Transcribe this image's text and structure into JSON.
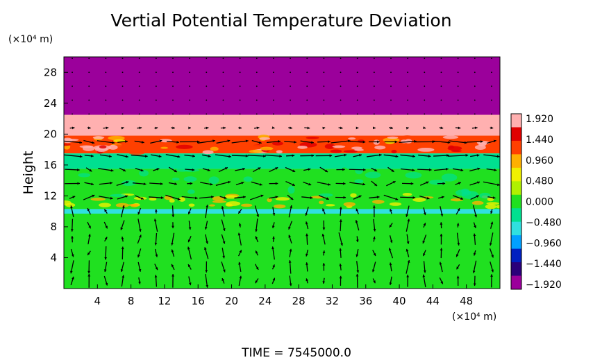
{
  "chart_data": {
    "type": "heatmap",
    "title": "Vertial Potential Temperature Deviation",
    "ylabel": "Height",
    "y_unit": "(×10⁴ m)",
    "x_unit": "(×10⁴ m)",
    "footer": "TIME  =  7545000.0",
    "xlim": [
      0,
      52
    ],
    "ylim": [
      0,
      30
    ],
    "x_ticks": [
      "4",
      "8",
      "12",
      "16",
      "20",
      "24",
      "28",
      "32",
      "36",
      "40",
      "44",
      "48"
    ],
    "y_ticks": [
      "4",
      "8",
      "12",
      "16",
      "20",
      "24",
      "28"
    ],
    "x_tick_values": [
      4,
      8,
      12,
      16,
      20,
      24,
      28,
      32,
      36,
      40,
      44,
      48
    ],
    "y_tick_values": [
      4,
      8,
      12,
      16,
      20,
      24,
      28
    ],
    "colorbar": {
      "labels": [
        "1.920",
        "1.440",
        "0.960",
        "0.480",
        "0.000",
        "−0.480",
        "−0.960",
        "−1.440",
        "−1.920"
      ],
      "min": -1.92,
      "max": 1.92,
      "colors": [
        "#9b009b",
        "#2a007a",
        "#0020c0",
        "#00a0ff",
        "#30e0e0",
        "#00e090",
        "#20e020",
        "#b0f000",
        "#f0f000",
        "#ffb000",
        "#ff4000",
        "#e00000",
        "#ffb0b0"
      ]
    },
    "regions": [
      {
        "label": "upper layer",
        "y_from": 22.5,
        "y_to": 30,
        "value": -1.92
      },
      {
        "label": "pink band",
        "y_from": 19.8,
        "y_to": 22.5,
        "value": 1.92
      },
      {
        "label": "warm band",
        "y_from": 17.5,
        "y_to": 19.8,
        "value": 1.2
      },
      {
        "label": "cyan band",
        "y_from": 15.5,
        "y_to": 17.5,
        "value": -0.2
      },
      {
        "label": "mid layer",
        "y_from": 10,
        "y_to": 15.5,
        "value": 0.1
      },
      {
        "label": "thin blue line",
        "y_from": 9.7,
        "y_to": 10.3,
        "value": -0.6
      },
      {
        "label": "lower layer",
        "y_from": 0,
        "y_to": 9.7,
        "value": 0.05
      }
    ],
    "grid": false,
    "legend": "right"
  }
}
